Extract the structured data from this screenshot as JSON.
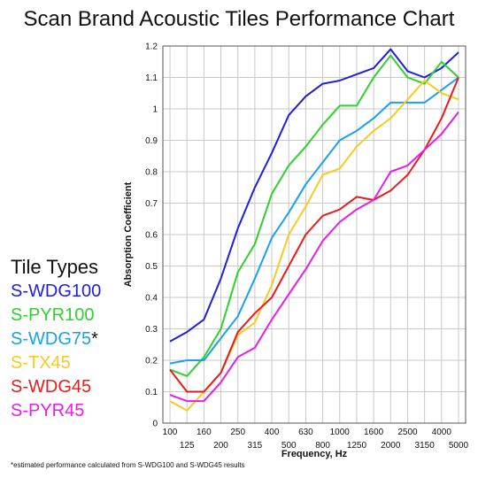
{
  "chart_data": {
    "type": "line",
    "title": "Scan Brand Acoustic Tiles Performance Chart",
    "xlabel": "Frequency, Hz",
    "ylabel": "Absorption Coefficient",
    "x_scale": "log",
    "categories": [
      "100",
      "125",
      "160",
      "200",
      "250",
      "315",
      "400",
      "500",
      "630",
      "800",
      "1000",
      "1250",
      "1600",
      "2000",
      "2500",
      "3150",
      "4000",
      "5000"
    ],
    "ylim": [
      0,
      1.2
    ],
    "yticks": [
      "0",
      "0.1",
      "0.2",
      "0.3",
      "0.4",
      "0.5",
      "0.6",
      "0.7",
      "0.8",
      "0.9",
      "1",
      "1.1",
      "1.2"
    ],
    "grid": true,
    "legend_title": "Tile Types",
    "legend_position": "left",
    "series": [
      {
        "name": "S-WDG100",
        "color": "#1e1ee0",
        "values": [
          0.26,
          0.29,
          0.33,
          0.46,
          0.62,
          0.75,
          0.86,
          0.98,
          1.04,
          1.08,
          1.09,
          1.11,
          1.13,
          1.19,
          1.12,
          1.1,
          1.13,
          1.18
        ]
      },
      {
        "name": "S-PYR100",
        "color": "#2ed12e",
        "values": [
          0.17,
          0.15,
          0.21,
          0.3,
          0.48,
          0.57,
          0.73,
          0.82,
          0.88,
          0.95,
          1.01,
          1.01,
          1.1,
          1.17,
          1.1,
          1.08,
          1.15,
          1.1
        ]
      },
      {
        "name": "S-WDG75",
        "color": "#1aa0ec",
        "values": [
          0.19,
          0.2,
          0.2,
          0.27,
          0.34,
          0.46,
          0.59,
          0.67,
          0.76,
          0.83,
          0.9,
          0.93,
          0.97,
          1.02,
          1.02,
          1.02,
          1.06,
          1.1
        ]
      },
      {
        "name": "S-TX45",
        "color": "#f6cb22",
        "values": [
          0.07,
          0.04,
          0.1,
          0.16,
          0.28,
          0.32,
          0.44,
          0.6,
          0.69,
          0.79,
          0.81,
          0.88,
          0.93,
          0.97,
          1.03,
          1.09,
          1.05,
          1.03
        ]
      },
      {
        "name": "S-WDG45",
        "color": "#ec1b1b",
        "values": [
          0.17,
          0.1,
          0.1,
          0.16,
          0.29,
          0.35,
          0.4,
          0.5,
          0.6,
          0.66,
          0.68,
          0.72,
          0.71,
          0.74,
          0.79,
          0.87,
          0.97,
          1.1
        ]
      },
      {
        "name": "S-PYR45",
        "color": "#e81ee8",
        "values": [
          0.09,
          0.07,
          0.07,
          0.13,
          0.21,
          0.24,
          0.33,
          0.41,
          0.49,
          0.58,
          0.64,
          0.68,
          0.71,
          0.8,
          0.82,
          0.87,
          0.92,
          0.99
        ]
      }
    ],
    "legend_marks": [
      "",
      "",
      "*",
      "",
      "",
      ""
    ],
    "footnote": "*estimated performance calculated from S-WDG100 and S-WDG45 results"
  }
}
